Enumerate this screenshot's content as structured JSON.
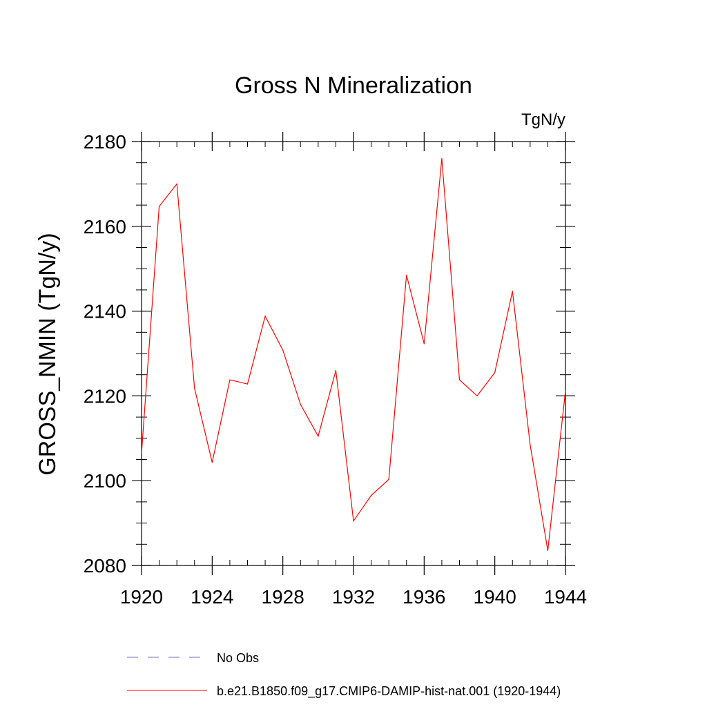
{
  "chart_data": {
    "type": "line",
    "title": "Gross N Mineralization",
    "units_label": "TgN/y",
    "ylabel": "GROSS_NMIN  (TgN/y)",
    "xlabel": "",
    "xlim": [
      1920,
      1944
    ],
    "ylim": [
      2080,
      2180
    ],
    "x_ticks": [
      1920,
      1924,
      1928,
      1932,
      1936,
      1940,
      1944
    ],
    "y_ticks": [
      2080,
      2100,
      2120,
      2140,
      2160,
      2180
    ],
    "x_tick_labels": [
      "1920",
      "1924",
      "1928",
      "1932",
      "1936",
      "1940",
      "1944"
    ],
    "y_tick_labels": [
      "2080",
      "2100",
      "2120",
      "2140",
      "2160",
      "2180"
    ],
    "grid": false,
    "series": [
      {
        "name": "b.e21.B1850.f09_g17.CMIP6-DAMIP-hist-nat.001 (1920-1944)",
        "color": "#ff0000",
        "style": "solid",
        "x": [
          1920,
          1921,
          1922,
          1923,
          1924,
          1925,
          1926,
          1927,
          1928,
          1929,
          1930,
          1931,
          1932,
          1933,
          1934,
          1935,
          1936,
          1937,
          1938,
          1939,
          1940,
          1941,
          1942,
          1943,
          1944
        ],
        "y": [
          2106.5,
          2164.7,
          2170.0,
          2121.8,
          2104.3,
          2123.8,
          2122.8,
          2138.8,
          2130.8,
          2118.0,
          2110.5,
          2126.0,
          2090.5,
          2096.5,
          2100.3,
          2148.5,
          2132.3,
          2176.0,
          2123.8,
          2120.0,
          2125.5,
          2144.7,
          2108.5,
          2083.5,
          2121.2
        ]
      }
    ],
    "legend": {
      "placement": "bottom",
      "entries": [
        {
          "label": "No Obs",
          "color": "#7070c0",
          "style": "dashed"
        },
        {
          "label": "b.e21.B1850.f09_g17.CMIP6-DAMIP-hist-nat.001 (1920-1944)",
          "color": "#ff0000",
          "style": "solid"
        }
      ]
    }
  }
}
